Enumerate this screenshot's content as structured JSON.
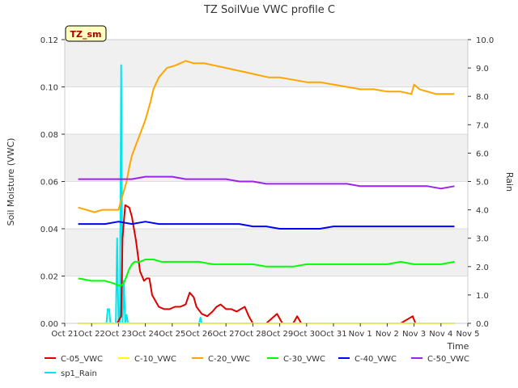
{
  "chart_data": {
    "type": "line",
    "title": "TZ SoilVue VWC profile C",
    "site_label": "TZ_sm",
    "xlabel": "Time",
    "ylabel": "Soil Moisture (VWC)",
    "y2label": "Rain",
    "x_ticks": [
      "Oct 21",
      "Oct 22",
      "Oct 23",
      "Oct 24",
      "Oct 25",
      "Oct 26",
      "Oct 27",
      "Oct 28",
      "Oct 29",
      "Oct 30",
      "Oct 31",
      "Nov 1",
      "Nov 2",
      "Nov 3",
      "Nov 4",
      "Nov 5"
    ],
    "xlim": [
      0,
      15
    ],
    "ylim": [
      0.0,
      0.12
    ],
    "y_ticks": [
      "0.00",
      "0.02",
      "0.04",
      "0.06",
      "0.08",
      "0.10",
      "0.12"
    ],
    "y2lim": [
      0.0,
      10.0
    ],
    "y2_ticks": [
      "0.0",
      "1.0",
      "2.0",
      "3.0",
      "4.0",
      "5.0",
      "6.0",
      "7.0",
      "8.0",
      "9.0",
      "10.0"
    ],
    "grid": "horizontal bands",
    "legend_position": "bottom",
    "series": [
      {
        "name": "C-05_VWC",
        "color": "#dd0000",
        "axis": "left",
        "x": [
          0.5,
          1.5,
          1.95,
          2.1,
          2.15,
          2.25,
          2.4,
          2.5,
          2.65,
          2.8,
          2.95,
          3.05,
          3.15,
          3.25,
          3.35,
          3.5,
          3.7,
          3.9,
          4.1,
          4.3,
          4.5,
          4.65,
          4.8,
          4.9,
          5.1,
          5.3,
          5.5,
          5.65,
          5.8,
          6,
          6.2,
          6.4,
          6.55,
          6.7,
          6.85,
          7,
          7.3,
          7.5,
          7.7,
          7.9,
          8.1,
          8.5,
          8.65,
          8.8,
          9,
          9.5,
          10,
          10.5,
          11,
          11.5,
          12,
          12.5,
          12.95,
          13.05,
          13.3,
          14,
          14.5
        ],
        "y": [
          0,
          0,
          0,
          0.003,
          0.036,
          0.05,
          0.049,
          0.045,
          0.035,
          0.022,
          0.018,
          0.019,
          0.019,
          0.012,
          0.01,
          0.007,
          0.006,
          0.006,
          0.007,
          0.007,
          0.008,
          0.013,
          0.011,
          0.007,
          0.004,
          0.003,
          0.005,
          0.007,
          0.008,
          0.006,
          0.006,
          0.005,
          0.006,
          0.007,
          0.003,
          0,
          0,
          0,
          0.002,
          0.004,
          0,
          0,
          0.003,
          0,
          0,
          0,
          0,
          0,
          0,
          0,
          0,
          0,
          0.003,
          0,
          0,
          0,
          0
        ]
      },
      {
        "name": "C-10_VWC",
        "color": "#ffff00",
        "axis": "left",
        "x": [
          0.5,
          14.5
        ],
        "y": [
          0,
          0
        ]
      },
      {
        "name": "C-20_VWC",
        "color": "#ffa500",
        "axis": "left",
        "x": [
          0.5,
          0.8,
          1.1,
          1.4,
          1.7,
          2.0,
          2.1,
          2.2,
          2.3,
          2.4,
          2.5,
          2.6,
          2.7,
          2.8,
          2.9,
          3.0,
          3.1,
          3.2,
          3.3,
          3.5,
          3.8,
          4.1,
          4.5,
          4.8,
          5.2,
          5.6,
          6.0,
          6.4,
          6.8,
          7.2,
          7.6,
          8.0,
          8.5,
          9.0,
          9.5,
          10.0,
          10.5,
          11.0,
          11.5,
          12.0,
          12.5,
          12.9,
          13.0,
          13.2,
          13.5,
          13.8,
          14.1,
          14.5
        ],
        "y": [
          0.049,
          0.048,
          0.047,
          0.048,
          0.048,
          0.048,
          0.052,
          0.056,
          0.06,
          0.066,
          0.071,
          0.074,
          0.077,
          0.08,
          0.083,
          0.086,
          0.09,
          0.094,
          0.099,
          0.104,
          0.108,
          0.109,
          0.111,
          0.11,
          0.11,
          0.109,
          0.108,
          0.107,
          0.106,
          0.105,
          0.104,
          0.104,
          0.103,
          0.102,
          0.102,
          0.101,
          0.1,
          0.099,
          0.099,
          0.098,
          0.098,
          0.097,
          0.101,
          0.099,
          0.098,
          0.097,
          0.097,
          0.097
        ]
      },
      {
        "name": "C-30_VWC",
        "color": "#00ff00",
        "axis": "left",
        "x": [
          0.5,
          1.0,
          1.5,
          1.8,
          2.0,
          2.1,
          2.2,
          2.3,
          2.4,
          2.5,
          2.6,
          2.8,
          3.0,
          3.3,
          3.6,
          4.0,
          4.5,
          5.0,
          5.5,
          6.0,
          6.5,
          7.0,
          7.5,
          8.0,
          8.5,
          9.0,
          9.5,
          10.0,
          10.5,
          11.0,
          11.5,
          12.0,
          12.5,
          13.0,
          13.5,
          14.0,
          14.5
        ],
        "y": [
          0.019,
          0.018,
          0.018,
          0.017,
          0.016,
          0.016,
          0.017,
          0.02,
          0.023,
          0.025,
          0.026,
          0.026,
          0.027,
          0.027,
          0.026,
          0.026,
          0.026,
          0.026,
          0.025,
          0.025,
          0.025,
          0.025,
          0.024,
          0.024,
          0.024,
          0.025,
          0.025,
          0.025,
          0.025,
          0.025,
          0.025,
          0.025,
          0.026,
          0.025,
          0.025,
          0.025,
          0.026
        ]
      },
      {
        "name": "C-40_VWC",
        "color": "#0000ff",
        "axis": "left",
        "x": [
          0.5,
          1.0,
          1.5,
          2.0,
          2.5,
          3.0,
          3.5,
          4.0,
          4.5,
          5.0,
          5.5,
          6.0,
          6.5,
          7.0,
          7.5,
          8.0,
          8.5,
          9.0,
          9.5,
          10.0,
          10.5,
          11.0,
          11.5,
          12.0,
          12.5,
          13.0,
          13.5,
          14.0,
          14.5
        ],
        "y": [
          0.042,
          0.042,
          0.042,
          0.043,
          0.042,
          0.043,
          0.042,
          0.042,
          0.042,
          0.042,
          0.042,
          0.042,
          0.042,
          0.041,
          0.041,
          0.04,
          0.04,
          0.04,
          0.04,
          0.041,
          0.041,
          0.041,
          0.041,
          0.041,
          0.041,
          0.041,
          0.041,
          0.041,
          0.041
        ]
      },
      {
        "name": "C-50_VWC",
        "color": "#a020f0",
        "axis": "left",
        "x": [
          0.5,
          1.0,
          1.5,
          2.0,
          2.5,
          3.0,
          3.5,
          4.0,
          4.5,
          5.0,
          5.5,
          6.0,
          6.5,
          7.0,
          7.5,
          8.0,
          8.5,
          9.0,
          9.5,
          10.0,
          10.5,
          11.0,
          11.5,
          12.0,
          12.5,
          13.0,
          13.5,
          14.0,
          14.5
        ],
        "y": [
          0.061,
          0.061,
          0.061,
          0.061,
          0.061,
          0.062,
          0.062,
          0.062,
          0.061,
          0.061,
          0.061,
          0.061,
          0.06,
          0.06,
          0.059,
          0.059,
          0.059,
          0.059,
          0.059,
          0.059,
          0.059,
          0.058,
          0.058,
          0.058,
          0.058,
          0.058,
          0.058,
          0.057,
          0.058
        ]
      },
      {
        "name": "sp1_Rain",
        "color": "#00e5ee",
        "axis": "right",
        "x": [
          0.5,
          1.55,
          1.6,
          1.65,
          1.7,
          1.75,
          1.9,
          1.95,
          2.0,
          2.05,
          2.1,
          2.15,
          2.2,
          2.25,
          2.3,
          2.35,
          5.0,
          5.05,
          5.1,
          14.5
        ],
        "y": [
          0,
          0,
          0.5,
          0.5,
          0,
          0,
          0,
          3.0,
          0,
          0,
          9.1,
          0,
          1.5,
          0,
          0.3,
          0,
          0,
          0.2,
          0,
          0
        ]
      }
    ]
  }
}
